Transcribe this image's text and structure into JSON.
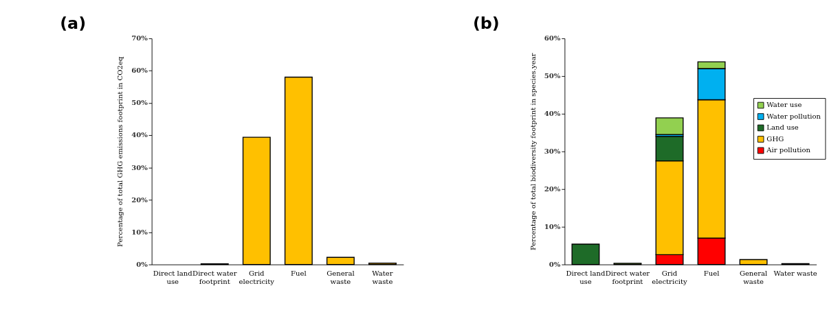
{
  "chart_data": [
    {
      "type": "bar",
      "title": "(a)",
      "ylabel": "Percentage of total GHG emissions footprint in CO2eq",
      "categories": [
        [
          "Direct land",
          "use"
        ],
        [
          "Direct water",
          "footprint"
        ],
        [
          "Grid",
          "electricity"
        ],
        [
          "Fuel"
        ],
        [
          "General",
          "waste"
        ],
        [
          "Water",
          "waste"
        ]
      ],
      "values": [
        0,
        0.2,
        39.4,
        58,
        2.2,
        0.4
      ],
      "color": "#ffc000",
      "ylim": [
        0,
        70
      ],
      "yticks": [
        {
          "value": 0,
          "label": "0%"
        },
        {
          "value": 10,
          "label": "10%"
        },
        {
          "value": 20,
          "label": "20%"
        },
        {
          "value": 30,
          "label": "30%"
        },
        {
          "value": 40,
          "label": "40%"
        },
        {
          "value": 50,
          "label": "50%"
        },
        {
          "value": 60,
          "label": "60%"
        },
        {
          "value": 70,
          "label": "70%"
        }
      ],
      "grid": false,
      "legend": false
    },
    {
      "type": "bar",
      "title": "(b)",
      "ylabel": "Percentage of total biodiversity footprint in species.year",
      "stacked": true,
      "categories": [
        [
          "Direct land",
          "use"
        ],
        [
          "Direct water",
          "footprint"
        ],
        [
          "Grid",
          "electricity"
        ],
        [
          "Fuel"
        ],
        [
          "General",
          "waste"
        ],
        [
          "Water waste"
        ]
      ],
      "series": [
        {
          "name": "Air pollution",
          "color": "#ff0000",
          "values": [
            null,
            null,
            2.6,
            7.0,
            null,
            null
          ]
        },
        {
          "name": "GHG",
          "color": "#ffc000",
          "values": [
            null,
            null,
            24.9,
            36.7,
            1.3,
            null
          ]
        },
        {
          "name": "Land use",
          "color": "#1e6b28",
          "values": [
            5.4,
            null,
            6.5,
            null,
            null,
            null
          ]
        },
        {
          "name": "Water pollution",
          "color": "#00b0f0",
          "values": [
            null,
            null,
            0.5,
            8.3,
            null,
            0.2
          ]
        },
        {
          "name": "Water use",
          "color": "#92d050",
          "values": [
            null,
            0.3,
            4.4,
            1.8,
            null,
            null
          ]
        }
      ],
      "ylim": [
        0,
        60
      ],
      "yticks": [
        {
          "value": 0,
          "label": "0%"
        },
        {
          "value": 10,
          "label": "10%"
        },
        {
          "value": 20,
          "label": "20%"
        },
        {
          "value": 30,
          "label": "30%"
        },
        {
          "value": 40,
          "label": "40%"
        },
        {
          "value": 50,
          "label": "50%"
        },
        {
          "value": 60,
          "label": "60%"
        }
      ],
      "grid": false,
      "legend": "right"
    }
  ]
}
